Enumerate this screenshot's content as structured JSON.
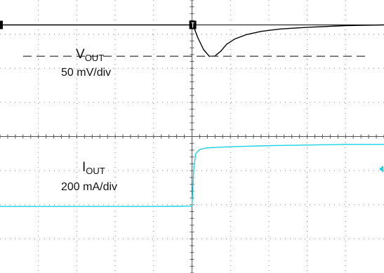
{
  "chart_data": {
    "type": "line",
    "title": "",
    "xlabel": "",
    "ylabel": "",
    "grid": true,
    "grid_divisions": {
      "x": 10,
      "y": 8
    },
    "x_range_div": [
      0,
      10
    ],
    "y_range_div": [
      0,
      8
    ],
    "series": [
      {
        "name": "V_OUT",
        "color": "#000000",
        "label_main": "V",
        "label_sub": "OUT",
        "scale_label": "50 mV/div",
        "reference_level_div": 6.35,
        "x": [
          0,
          1,
          2,
          3,
          4,
          5,
          5.05,
          5.15,
          5.3,
          5.45,
          5.6,
          5.75,
          5.9,
          6.1,
          6.4,
          6.8,
          7.3,
          8,
          9,
          10
        ],
        "y": [
          7.27,
          7.27,
          7.27,
          7.27,
          7.27,
          7.27,
          7.2,
          6.9,
          6.55,
          6.35,
          6.36,
          6.5,
          6.7,
          6.85,
          6.98,
          7.08,
          7.15,
          7.2,
          7.25,
          7.27
        ]
      },
      {
        "name": "I_OUT",
        "color": "#19d3e6",
        "label_main": "I",
        "label_sub": "OUT",
        "scale_label": "200 mA/div",
        "x": [
          0,
          1,
          2,
          3,
          4,
          5,
          5.02,
          5.05,
          5.1,
          5.2,
          5.35,
          5.6,
          6,
          7,
          8,
          9,
          10
        ],
        "y": [
          1.95,
          1.95,
          1.95,
          1.95,
          1.95,
          1.96,
          2.4,
          3.1,
          3.5,
          3.62,
          3.66,
          3.68,
          3.7,
          3.73,
          3.75,
          3.77,
          3.77
        ]
      }
    ]
  }
}
